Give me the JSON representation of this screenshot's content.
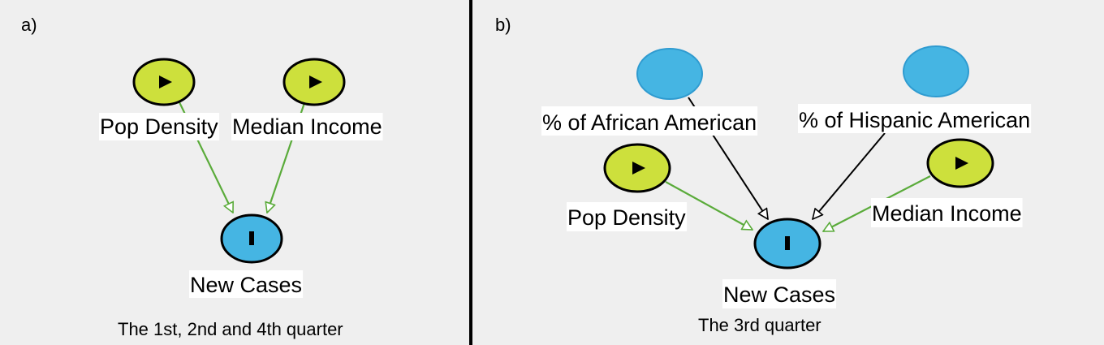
{
  "colors": {
    "background": "#efefef",
    "input_node_fill": "#cde03c",
    "outcome_node_fill": "#45b5e3",
    "hidden_node_fill": "#45b5e3",
    "green_edge": "#5aab3a",
    "black_edge": "#000000",
    "divider": "#000000"
  },
  "panels": [
    {
      "letter": "a)",
      "caption": "The 1st, 2nd and 4th quarter",
      "nodes": [
        {
          "id": "pop_density",
          "label": "Pop Density",
          "kind": "input",
          "icon": "play-icon"
        },
        {
          "id": "median_income",
          "label": "Median Income",
          "kind": "input",
          "icon": "play-icon"
        },
        {
          "id": "new_cases",
          "label": "New Cases",
          "kind": "outcome",
          "icon": "bar-icon"
        }
      ],
      "edges": [
        {
          "from": "pop_density",
          "to": "new_cases",
          "color": "green"
        },
        {
          "from": "median_income",
          "to": "new_cases",
          "color": "green"
        }
      ]
    },
    {
      "letter": "b)",
      "caption": "The 3rd quarter",
      "nodes": [
        {
          "id": "african_american",
          "label": "% of African American",
          "kind": "hidden",
          "icon": ""
        },
        {
          "id": "hispanic_american",
          "label": "% of Hispanic American",
          "kind": "hidden",
          "icon": ""
        },
        {
          "id": "pop_density",
          "label": "Pop Density",
          "kind": "input",
          "icon": "play-icon"
        },
        {
          "id": "median_income",
          "label": "Median Income",
          "kind": "input",
          "icon": "play-icon"
        },
        {
          "id": "new_cases",
          "label": "New Cases",
          "kind": "outcome",
          "icon": "bar-icon"
        }
      ],
      "edges": [
        {
          "from": "african_american",
          "to": "new_cases",
          "color": "black"
        },
        {
          "from": "hispanic_american",
          "to": "new_cases",
          "color": "black"
        },
        {
          "from": "pop_density",
          "to": "new_cases",
          "color": "green"
        },
        {
          "from": "median_income",
          "to": "new_cases",
          "color": "green"
        }
      ]
    }
  ]
}
